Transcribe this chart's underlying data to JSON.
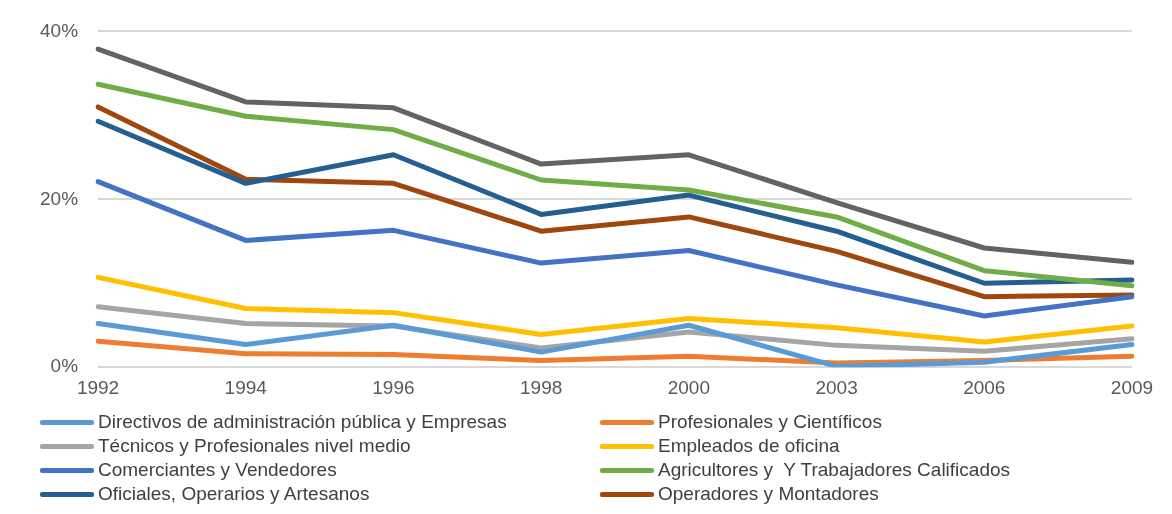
{
  "chart_data": {
    "type": "line",
    "categories": [
      "1992",
      "1994",
      "1996",
      "1998",
      "2000",
      "2003",
      "2006",
      "2009"
    ],
    "ylim": [
      0,
      40
    ],
    "yticks": [
      {
        "value": 0,
        "label": "0%"
      },
      {
        "value": 20,
        "label": "20%"
      },
      {
        "value": 40,
        "label": "40%"
      }
    ],
    "grid": "y",
    "legend": "bottom",
    "marker": "none",
    "line_style": "solid",
    "series": [
      {
        "name": "Directivos de administración pública y Empresas",
        "color": "#5b9bd5",
        "values": [
          5.2,
          2.7,
          5.0,
          1.8,
          5.0,
          0.1,
          0.6,
          2.7
        ]
      },
      {
        "name": "Profesionales y Científicos",
        "color": "#ed7d31",
        "values": [
          3.1,
          1.6,
          1.5,
          0.8,
          1.3,
          0.5,
          0.8,
          1.3
        ]
      },
      {
        "name": "Técnicos y Profesionales nivel medio",
        "color": "#a5a5a5",
        "values": [
          7.2,
          5.2,
          4.9,
          2.3,
          4.2,
          2.6,
          1.9,
          3.4
        ]
      },
      {
        "name": "Empleados de oficina",
        "color": "#ffc000",
        "values": [
          10.7,
          7.0,
          6.5,
          3.9,
          5.8,
          4.7,
          3.0,
          4.9
        ]
      },
      {
        "name": "Comerciantes y Vendedores",
        "color": "#4472c4",
        "values": [
          22.1,
          15.1,
          16.3,
          12.4,
          13.9,
          9.8,
          6.1,
          8.4
        ]
      },
      {
        "name": "Agricultores y  Y Trabajadores Calificados",
        "color": "#70ad47",
        "values": [
          33.7,
          29.9,
          28.3,
          22.3,
          21.1,
          17.9,
          11.5,
          9.7
        ]
      },
      {
        "name": "Oficiales, Operarios y Artesanos",
        "color": "#255e91",
        "values": [
          29.3,
          21.9,
          25.3,
          18.2,
          20.5,
          16.2,
          10.0,
          10.4
        ]
      },
      {
        "name": "Operadores y Montadores",
        "color": "#9e480e",
        "values": [
          31.0,
          22.4,
          21.9,
          16.2,
          17.9,
          13.8,
          8.4,
          8.6
        ]
      },
      {
        "color": "#636363",
        "values": [
          37.9,
          31.6,
          30.9,
          24.2,
          25.3,
          19.6,
          14.2,
          12.5
        ]
      }
    ]
  }
}
